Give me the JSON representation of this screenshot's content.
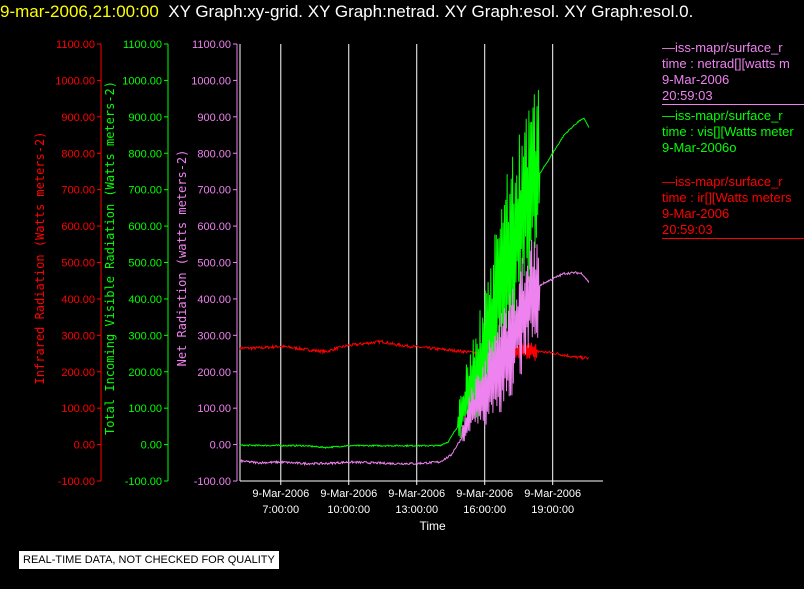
{
  "header": {
    "timestamp": "9-mar-2006,21:00:00",
    "graphs": "XY Graph:xy-grid.  XY Graph:netrad.  XY Graph:esol.  XY Graph:esol.0."
  },
  "colors": {
    "red": "#ff0000",
    "green": "#00ff00",
    "violet": "#ee82ee",
    "grid": "#ffffff"
  },
  "legend": [
    {
      "line1": "—iss-mapr/surface_r",
      "line2": "time : netrad[][watts m",
      "line3": "9-Mar-2006",
      "line4": "20:59:03",
      "color": "violet"
    },
    {
      "line1": "—iss-mapr/surface_r",
      "line2": "time : vis[][Watts meter",
      "line3": "9-Mar-2006o",
      "line4": "",
      "color": "green"
    },
    {
      "line1": "—iss-mapr/surface_r",
      "line2": "time : ir[][Watts meters",
      "line3": "9-Mar-2006",
      "line4": "20:59:03",
      "color": "red"
    }
  ],
  "quality_note": "REAL-TIME DATA, NOT CHECKED FOR QUALITY",
  "chart_data": {
    "type": "line",
    "xlabel": "Time",
    "x_ticks": [
      {
        "date": "9-Mar-2006",
        "time": "7:00:00",
        "hour": 7
      },
      {
        "date": "9-Mar-2006",
        "time": "10:00:00",
        "hour": 10
      },
      {
        "date": "9-Mar-2006",
        "time": "13:00:00",
        "hour": 13
      },
      {
        "date": "9-Mar-2006",
        "time": "16:00:00",
        "hour": 16
      },
      {
        "date": "9-Mar-2006",
        "time": "19:00:00",
        "hour": 19
      }
    ],
    "xlim": [
      5.2,
      21.0
    ],
    "y_axes": [
      {
        "label": "Infrared Radiation (Watts meters-2)",
        "color": "red",
        "ticks": [
          "-100.00",
          "0.00",
          "100.00",
          "200.00",
          "300.00",
          "400.00",
          "500.00",
          "600.00",
          "700.00",
          "800.00",
          "900.00",
          "1000.00",
          "1100.00"
        ]
      },
      {
        "label": "Total Incoming Visible Radiation (Watts meters-2)",
        "color": "green",
        "ticks": [
          "-100.00",
          "0.00",
          "100.00",
          "200.00",
          "300.00",
          "400.00",
          "500.00",
          "600.00",
          "700.00",
          "800.00",
          "900.00",
          "1000.00",
          "1100.00"
        ]
      },
      {
        "label": "Net Radiation (watts meters-2)",
        "color": "violet",
        "ticks": [
          "-100.00",
          "0.00",
          "100.00",
          "200.00",
          "300.00",
          "400.00",
          "500.00",
          "600.00",
          "700.00",
          "800.00",
          "900.00",
          "1000.00",
          "1100.00"
        ]
      }
    ],
    "ylim": [
      -100,
      1100
    ],
    "grid": true,
    "series": [
      {
        "color": "red",
        "noise": 4,
        "points": [
          [
            5.2,
            265
          ],
          [
            6,
            265
          ],
          [
            7,
            270
          ],
          [
            8,
            262
          ],
          [
            9,
            255
          ],
          [
            9.5,
            265
          ],
          [
            10,
            272
          ],
          [
            11,
            280
          ],
          [
            11.5,
            283
          ],
          [
            12,
            275
          ],
          [
            13,
            268
          ],
          [
            14,
            262
          ],
          [
            15,
            256
          ],
          [
            16,
            250
          ],
          [
            17,
            255
          ],
          [
            18,
            258
          ],
          [
            19,
            252
          ],
          [
            20,
            240
          ],
          [
            20.6,
            237
          ]
        ],
        "spike_range": [
          17.0,
          18.3
        ],
        "spike_amp": 25
      },
      {
        "color": "green",
        "noise": 2,
        "points": [
          [
            5.2,
            -2
          ],
          [
            8,
            -3
          ],
          [
            9,
            -8
          ],
          [
            10,
            -3
          ],
          [
            13,
            -3
          ],
          [
            14,
            -3
          ],
          [
            14.4,
            8
          ],
          [
            14.8,
            50
          ],
          [
            15,
            95
          ],
          [
            15.3,
            150
          ],
          [
            15.6,
            200
          ],
          [
            16,
            250
          ],
          [
            16.3,
            330
          ],
          [
            16.6,
            420
          ],
          [
            17,
            500
          ],
          [
            17.5,
            600
          ],
          [
            18,
            700
          ],
          [
            18.5,
            750
          ],
          [
            19,
            800
          ],
          [
            19.5,
            850
          ],
          [
            20,
            880
          ],
          [
            20.2,
            890
          ],
          [
            20.4,
            895
          ],
          [
            20.6,
            870
          ]
        ],
        "spike_range": [
          14.8,
          18.4
        ],
        "spike_amp": 250
      },
      {
        "color": "violet",
        "noise": 3,
        "points": [
          [
            5.2,
            -45
          ],
          [
            6,
            -50
          ],
          [
            7,
            -48
          ],
          [
            8,
            -52
          ],
          [
            9,
            -52
          ],
          [
            10,
            -48
          ],
          [
            11,
            -50
          ],
          [
            12,
            -52
          ],
          [
            13,
            -52
          ],
          [
            14,
            -48
          ],
          [
            14.5,
            -30
          ],
          [
            15,
            20
          ],
          [
            15.3,
            80
          ],
          [
            15.7,
            120
          ],
          [
            16,
            150
          ],
          [
            16.5,
            200
          ],
          [
            17,
            260
          ],
          [
            17.5,
            330
          ],
          [
            18,
            400
          ],
          [
            18.5,
            440
          ],
          [
            19,
            455
          ],
          [
            19.5,
            470
          ],
          [
            20,
            472
          ],
          [
            20.3,
            470
          ],
          [
            20.6,
            445
          ]
        ],
        "spike_range": [
          15.0,
          18.4
        ],
        "spike_amp": 160
      }
    ]
  }
}
